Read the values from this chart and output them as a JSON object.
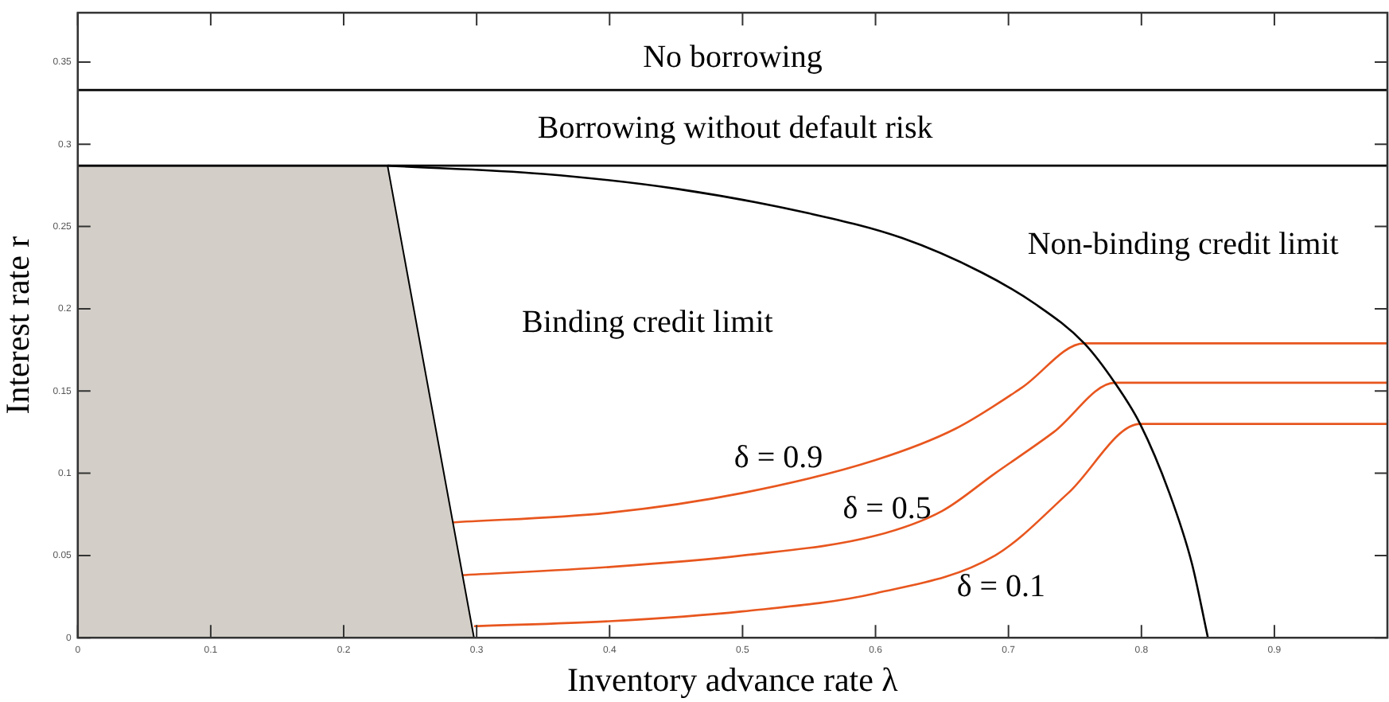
{
  "chart_data": {
    "type": "line",
    "xlabel": "Inventory advance rate λ",
    "ylabel": "Interest rate r",
    "xlim": [
      0,
      0.985
    ],
    "ylim": [
      0,
      0.38
    ],
    "xticks": [
      0,
      0.1,
      0.2,
      0.3,
      0.4,
      0.5,
      0.6,
      0.7,
      0.8,
      0.9
    ],
    "yticks": [
      0,
      0.05,
      0.1,
      0.15,
      0.2,
      0.25,
      0.3,
      0.35
    ],
    "grid": false,
    "legend": false,
    "marker": "none",
    "series": [
      {
        "type": "area",
        "color": "#d3cfc8",
        "x": [
          0,
          0.233,
          0.298
        ],
        "values": [
          0.287,
          0.287,
          0
        ]
      },
      {
        "color": "#000000",
        "x": [
          0.233,
          0.35,
          0.45,
          0.55,
          0.62,
          0.68,
          0.72,
          0.757,
          0.78,
          0.799,
          0.821,
          0.838,
          0.85
        ],
        "values": [
          0.287,
          0.282,
          0.273,
          0.258,
          0.243,
          0.222,
          0.203,
          0.179,
          0.155,
          0.13,
          0.088,
          0.045,
          0
        ]
      },
      {
        "name": "δ = 0.9",
        "color": "#e8561e",
        "x": [
          0.28,
          0.4,
          0.5,
          0.6,
          0.66,
          0.71,
          0.757,
          0.985
        ],
        "values": [
          0.07,
          0.076,
          0.088,
          0.108,
          0.127,
          0.152,
          0.179,
          0.179
        ]
      },
      {
        "name": "δ = 0.5",
        "color": "#e8561e",
        "x": [
          0.288,
          0.4,
          0.5,
          0.6,
          0.65,
          0.69,
          0.734,
          0.78,
          0.985
        ],
        "values": [
          0.038,
          0.043,
          0.05,
          0.062,
          0.077,
          0.1,
          0.125,
          0.155,
          0.155
        ]
      },
      {
        "name": "δ = 0.1",
        "color": "#e8561e",
        "x": [
          0.298,
          0.4,
          0.5,
          0.6,
          0.69,
          0.745,
          0.799,
          0.985
        ],
        "values": [
          0.007,
          0.01,
          0.016,
          0.027,
          0.05,
          0.088,
          0.13,
          0.13
        ]
      }
    ],
    "ref_lines": [
      {
        "axis": "y",
        "value": 0.333,
        "color": "#000000"
      },
      {
        "axis": "y",
        "value": 0.287,
        "color": "#000000"
      }
    ],
    "annotations": [
      "No borrowing",
      "Borrowing without default risk",
      "Binding credit limit",
      "Non-binding credit limit"
    ]
  }
}
